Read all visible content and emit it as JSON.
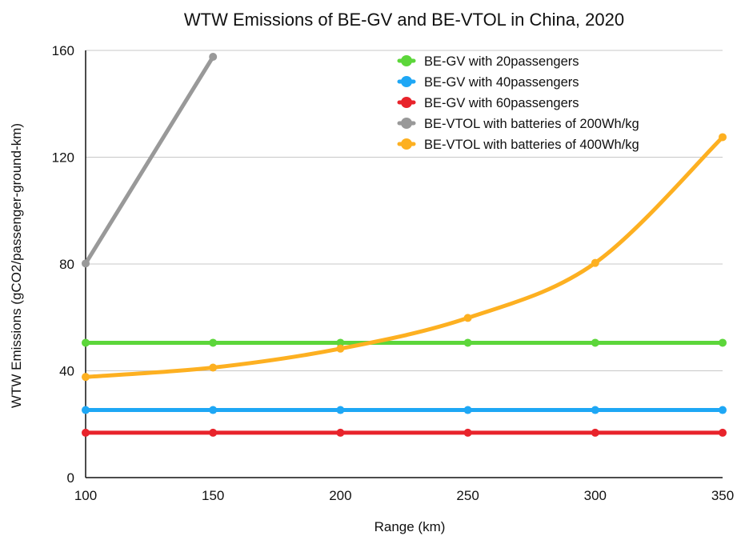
{
  "chart_data": {
    "type": "line",
    "title": "WTW Emissions of BE-GV and BE-VTOL in China, 2020",
    "xlabel": "Range (km)",
    "ylabel": "WTW Emissions (gCO2/passenger-ground-km)",
    "xlim": [
      100,
      350
    ],
    "ylim": [
      0,
      160
    ],
    "x_ticks": [
      "100",
      "150",
      "200",
      "250",
      "300",
      "350"
    ],
    "y_ticks": [
      "0",
      "40",
      "80",
      "120",
      "160"
    ],
    "grid": true,
    "legend_position": "top-right",
    "series": [
      {
        "name": "BE-GV with 20passengers",
        "color": "#5cd63a",
        "x": [
          100,
          150,
          200,
          250,
          300,
          350
        ],
        "y": [
          50.5,
          50.5,
          50.5,
          50.5,
          50.5,
          50.5
        ]
      },
      {
        "name": "BE-GV with 40passengers",
        "color": "#1ea7f5",
        "x": [
          100,
          150,
          200,
          250,
          300,
          350
        ],
        "y": [
          25.3,
          25.3,
          25.3,
          25.3,
          25.3,
          25.3
        ]
      },
      {
        "name": "BE-GV with 60passengers",
        "color": "#e8232b",
        "x": [
          100,
          150,
          200,
          250,
          300,
          350
        ],
        "y": [
          16.8,
          16.8,
          16.8,
          16.8,
          16.8,
          16.8
        ]
      },
      {
        "name": "BE-VTOL with batteries of 200Wh/kg",
        "color": "#999999",
        "x": [
          100,
          150
        ],
        "y": [
          80.2,
          157.6
        ]
      },
      {
        "name": "BE-VTOL with batteries of 400Wh/kg",
        "color": "#fdb021",
        "x": [
          100,
          150,
          200,
          250,
          300,
          350
        ],
        "y": [
          37.7,
          41.2,
          48.3,
          59.8,
          80.4,
          127.5
        ]
      }
    ]
  }
}
